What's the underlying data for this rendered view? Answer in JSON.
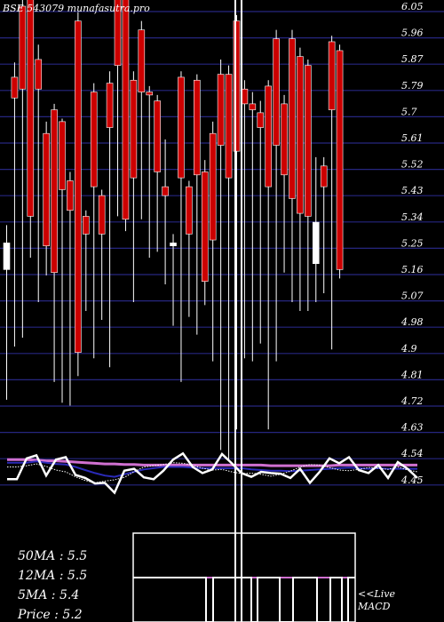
{
  "header": {
    "title": "BSE 543079 munafasutra.pro"
  },
  "chart_data": {
    "type": "candlestick",
    "title": "BSE 543079 munafasutra.pro",
    "ylim": [
      4.55,
      6.1
    ],
    "y_ticks": [
      "6.05",
      "5.96",
      "5.87",
      "5.79",
      "5.7",
      "5.61",
      "5.52",
      "5.43",
      "5.34",
      "5.25",
      "5.16",
      "5.07",
      "4.98",
      "4.9",
      "4.81",
      "4.72",
      "4.63",
      "4.54",
      "4.45"
    ],
    "candles": [
      {
        "o": 5.25,
        "h": 5.31,
        "l": 4.72,
        "c": 5.16,
        "color": "white"
      },
      {
        "o": 5.81,
        "h": 5.86,
        "l": 4.9,
        "c": 5.74,
        "color": "red"
      },
      {
        "o": 6.05,
        "h": 6.1,
        "l": 4.93,
        "c": 5.77,
        "color": "red"
      },
      {
        "o": 6.08,
        "h": 6.1,
        "l": 5.2,
        "c": 5.34,
        "color": "red"
      },
      {
        "o": 5.87,
        "h": 5.92,
        "l": 5.05,
        "c": 5.77,
        "color": "red"
      },
      {
        "o": 5.62,
        "h": 5.66,
        "l": 5.14,
        "c": 5.24,
        "color": "red"
      },
      {
        "o": 5.7,
        "h": 5.72,
        "l": 4.78,
        "c": 5.15,
        "color": "red"
      },
      {
        "o": 5.66,
        "h": 5.67,
        "l": 4.71,
        "c": 5.43,
        "color": "red"
      },
      {
        "o": 5.46,
        "h": 5.49,
        "l": 4.7,
        "c": 5.36,
        "color": "red"
      },
      {
        "o": 6.0,
        "h": 6.03,
        "l": 4.8,
        "c": 4.88,
        "color": "red"
      },
      {
        "o": 5.34,
        "h": 5.36,
        "l": 5.02,
        "c": 5.28,
        "color": "red"
      },
      {
        "o": 5.76,
        "h": 5.79,
        "l": 4.86,
        "c": 5.44,
        "color": "red"
      },
      {
        "o": 5.41,
        "h": 5.43,
        "l": 4.99,
        "c": 5.28,
        "color": "red"
      },
      {
        "o": 5.79,
        "h": 5.83,
        "l": 4.83,
        "c": 5.64,
        "color": "red"
      },
      {
        "o": 6.1,
        "h": 6.1,
        "l": 5.34,
        "c": 5.85,
        "color": "red"
      },
      {
        "o": 6.1,
        "h": 6.1,
        "l": 5.29,
        "c": 5.33,
        "color": "red"
      },
      {
        "o": 5.8,
        "h": 5.83,
        "l": 5.05,
        "c": 5.47,
        "color": "red"
      },
      {
        "o": 5.97,
        "h": 6.0,
        "l": 5.33,
        "c": 5.76,
        "color": "red"
      },
      {
        "o": 5.76,
        "h": 5.78,
        "l": 5.2,
        "c": 5.75,
        "color": "red"
      },
      {
        "o": 5.73,
        "h": 5.75,
        "l": 5.22,
        "c": 5.49,
        "color": "red"
      },
      {
        "o": 5.41,
        "h": 5.6,
        "l": 5.11,
        "c": 5.44,
        "color": "red"
      },
      {
        "o": 5.25,
        "h": 5.28,
        "l": 4.97,
        "c": 5.24,
        "color": "white"
      },
      {
        "o": 5.81,
        "h": 5.83,
        "l": 4.78,
        "c": 5.47,
        "color": "red"
      },
      {
        "o": 5.44,
        "h": 5.46,
        "l": 5.0,
        "c": 5.28,
        "color": "red"
      },
      {
        "o": 5.8,
        "h": 5.82,
        "l": 4.94,
        "c": 5.48,
        "color": "red"
      },
      {
        "o": 5.49,
        "h": 5.53,
        "l": 5.04,
        "c": 5.12,
        "color": "red"
      },
      {
        "o": 5.62,
        "h": 5.66,
        "l": 4.85,
        "c": 5.26,
        "color": "red"
      },
      {
        "o": 5.82,
        "h": 5.87,
        "l": 4.55,
        "c": 5.58,
        "color": "red"
      },
      {
        "o": 5.82,
        "h": 5.85,
        "l": 4.52,
        "c": 5.47,
        "color": "red"
      },
      {
        "o": 6.0,
        "h": 6.02,
        "l": 4.62,
        "c": 5.56,
        "color": "red"
      },
      {
        "o": 5.77,
        "h": 5.8,
        "l": 4.86,
        "c": 5.72,
        "color": "red"
      },
      {
        "o": 5.72,
        "h": 5.76,
        "l": 4.85,
        "c": 5.7,
        "color": "red"
      },
      {
        "o": 5.69,
        "h": 5.73,
        "l": 4.91,
        "c": 5.64,
        "color": "red"
      },
      {
        "o": 5.78,
        "h": 5.8,
        "l": 4.62,
        "c": 5.44,
        "color": "red"
      },
      {
        "o": 5.94,
        "h": 5.97,
        "l": 4.85,
        "c": 5.58,
        "color": "red"
      },
      {
        "o": 5.72,
        "h": 5.75,
        "l": 5.15,
        "c": 5.48,
        "color": "red"
      },
      {
        "o": 5.94,
        "h": 5.97,
        "l": 5.05,
        "c": 5.4,
        "color": "red"
      },
      {
        "o": 5.88,
        "h": 5.91,
        "l": 5.02,
        "c": 5.35,
        "color": "red"
      },
      {
        "o": 5.85,
        "h": 5.87,
        "l": 5.02,
        "c": 5.34,
        "color": "red"
      },
      {
        "o": 5.32,
        "h": 5.54,
        "l": 5.05,
        "c": 5.18,
        "color": "white"
      },
      {
        "o": 5.51,
        "h": 5.54,
        "l": 5.08,
        "c": 5.44,
        "color": "red"
      },
      {
        "o": 5.93,
        "h": 5.95,
        "l": 4.89,
        "c": 5.7,
        "color": "red"
      },
      {
        "o": 5.9,
        "h": 5.92,
        "l": 5.13,
        "c": 5.16,
        "color": "red"
      }
    ],
    "highlight_x": [
      265,
      272
    ],
    "indicator": {
      "ylim": [
        4.3,
        5.75
      ],
      "price_line": [
        5.18,
        5.18,
        5.52,
        5.57,
        5.24,
        5.5,
        5.54,
        5.25,
        5.2,
        5.11,
        5.12,
        4.96,
        5.32,
        5.35,
        5.21,
        5.18,
        5.32,
        5.5,
        5.6,
        5.38,
        5.28,
        5.34,
        5.59,
        5.44,
        5.28,
        5.22,
        5.3,
        5.28,
        5.27,
        5.2,
        5.35,
        5.12,
        5.3,
        5.52,
        5.44,
        5.54,
        5.33,
        5.28,
        5.41,
        5.2,
        5.46,
        5.35,
        5.2
      ],
      "ma_slow": [
        5.5,
        5.5,
        5.5,
        5.49,
        5.48,
        5.48,
        5.47,
        5.46,
        5.45,
        5.44,
        5.43,
        5.43,
        5.42,
        5.42,
        5.41,
        5.41,
        5.41,
        5.41,
        5.41,
        5.41,
        5.41,
        5.41,
        5.41,
        5.41,
        5.41,
        5.41,
        5.41,
        5.4,
        5.4,
        5.4,
        5.4,
        5.4,
        5.4,
        5.4,
        5.41,
        5.41,
        5.41,
        5.41,
        5.41,
        5.41,
        5.41,
        5.41,
        5.41
      ],
      "ma_mid": [
        5.45,
        5.45,
        5.45,
        5.47,
        5.45,
        5.43,
        5.42,
        5.38,
        5.33,
        5.28,
        5.24,
        5.22,
        5.26,
        5.3,
        5.34,
        5.36,
        5.38,
        5.38,
        5.38,
        5.37,
        5.36,
        5.36,
        5.36,
        5.36,
        5.36,
        5.34,
        5.33,
        5.32,
        5.32,
        5.31,
        5.32,
        5.33,
        5.34,
        5.35,
        5.36,
        5.37,
        5.36,
        5.35,
        5.36,
        5.35,
        5.35,
        5.35,
        5.35
      ],
      "ma_fast": [
        5.38,
        5.38,
        5.4,
        5.43,
        5.39,
        5.33,
        5.3,
        5.22,
        5.16,
        5.12,
        5.15,
        5.17,
        5.21,
        5.3,
        5.38,
        5.4,
        5.42,
        5.45,
        5.44,
        5.41,
        5.36,
        5.33,
        5.34,
        5.3,
        5.27,
        5.28,
        5.26,
        5.23,
        5.26,
        5.31,
        5.38,
        5.42,
        5.41,
        5.37,
        5.33,
        5.32,
        5.34,
        5.37,
        5.36,
        5.34,
        5.38,
        5.33,
        5.3
      ]
    },
    "macd": {
      "label": "<<Live MACD",
      "levels": [
        1,
        0
      ]
    }
  },
  "stats": {
    "ma50": "50MA : 5.5",
    "ma12": "12MA : 5.5",
    "ma5": "5MA : 5.4",
    "price": "Price   : 5.2"
  },
  "colors": {
    "background": "#000000",
    "grid": "#262680",
    "bearish": "#cc0000",
    "bullish": "#ffffff",
    "ma_slow": "#d070d0",
    "ma_mid": "#2a2ab8",
    "ma_fast": "#ffffff",
    "text": "#ffffff"
  }
}
